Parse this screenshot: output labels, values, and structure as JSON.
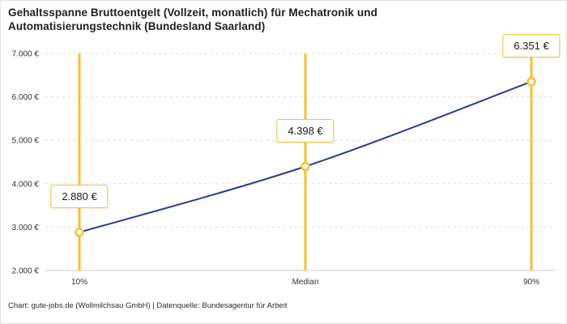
{
  "title": "Gehaltsspanne Bruttoentgelt (Vollzeit, monatlich) für Mechatronik und Automatisierungstechnik (Bundesland Saarland)",
  "footer": "Chart: gute-jobs.de (Wollmilchsau GmbH) | Datenquelle: Bundesagentur für Arbeit",
  "chart_data": {
    "type": "line",
    "title": "Gehaltsspanne Bruttoentgelt (Vollzeit, monatlich) für Mechatronik und Automatisierungstechnik (Bundesland Saarland)",
    "categories": [
      "10%",
      "Median",
      "90%"
    ],
    "values": [
      2880,
      4398,
      6351
    ],
    "point_labels": [
      "2.880 €",
      "4.398 €",
      "6.351 €"
    ],
    "ylim": [
      2000,
      7000
    ],
    "yticks": [
      2000,
      3000,
      4000,
      5000,
      6000,
      7000
    ],
    "ytick_labels": [
      "2.000 €",
      "3.000 €",
      "4.000 €",
      "5.000 €",
      "6.000 €",
      "7.000 €"
    ],
    "xlabel": "",
    "ylabel": "",
    "legend": "none",
    "grid": "horizontal-dashed",
    "colors": {
      "line": "#2a3b8f",
      "highlight": "#f3c233",
      "grid": "#dedede",
      "axis": "#c9c9c9",
      "text": "#333333"
    }
  }
}
